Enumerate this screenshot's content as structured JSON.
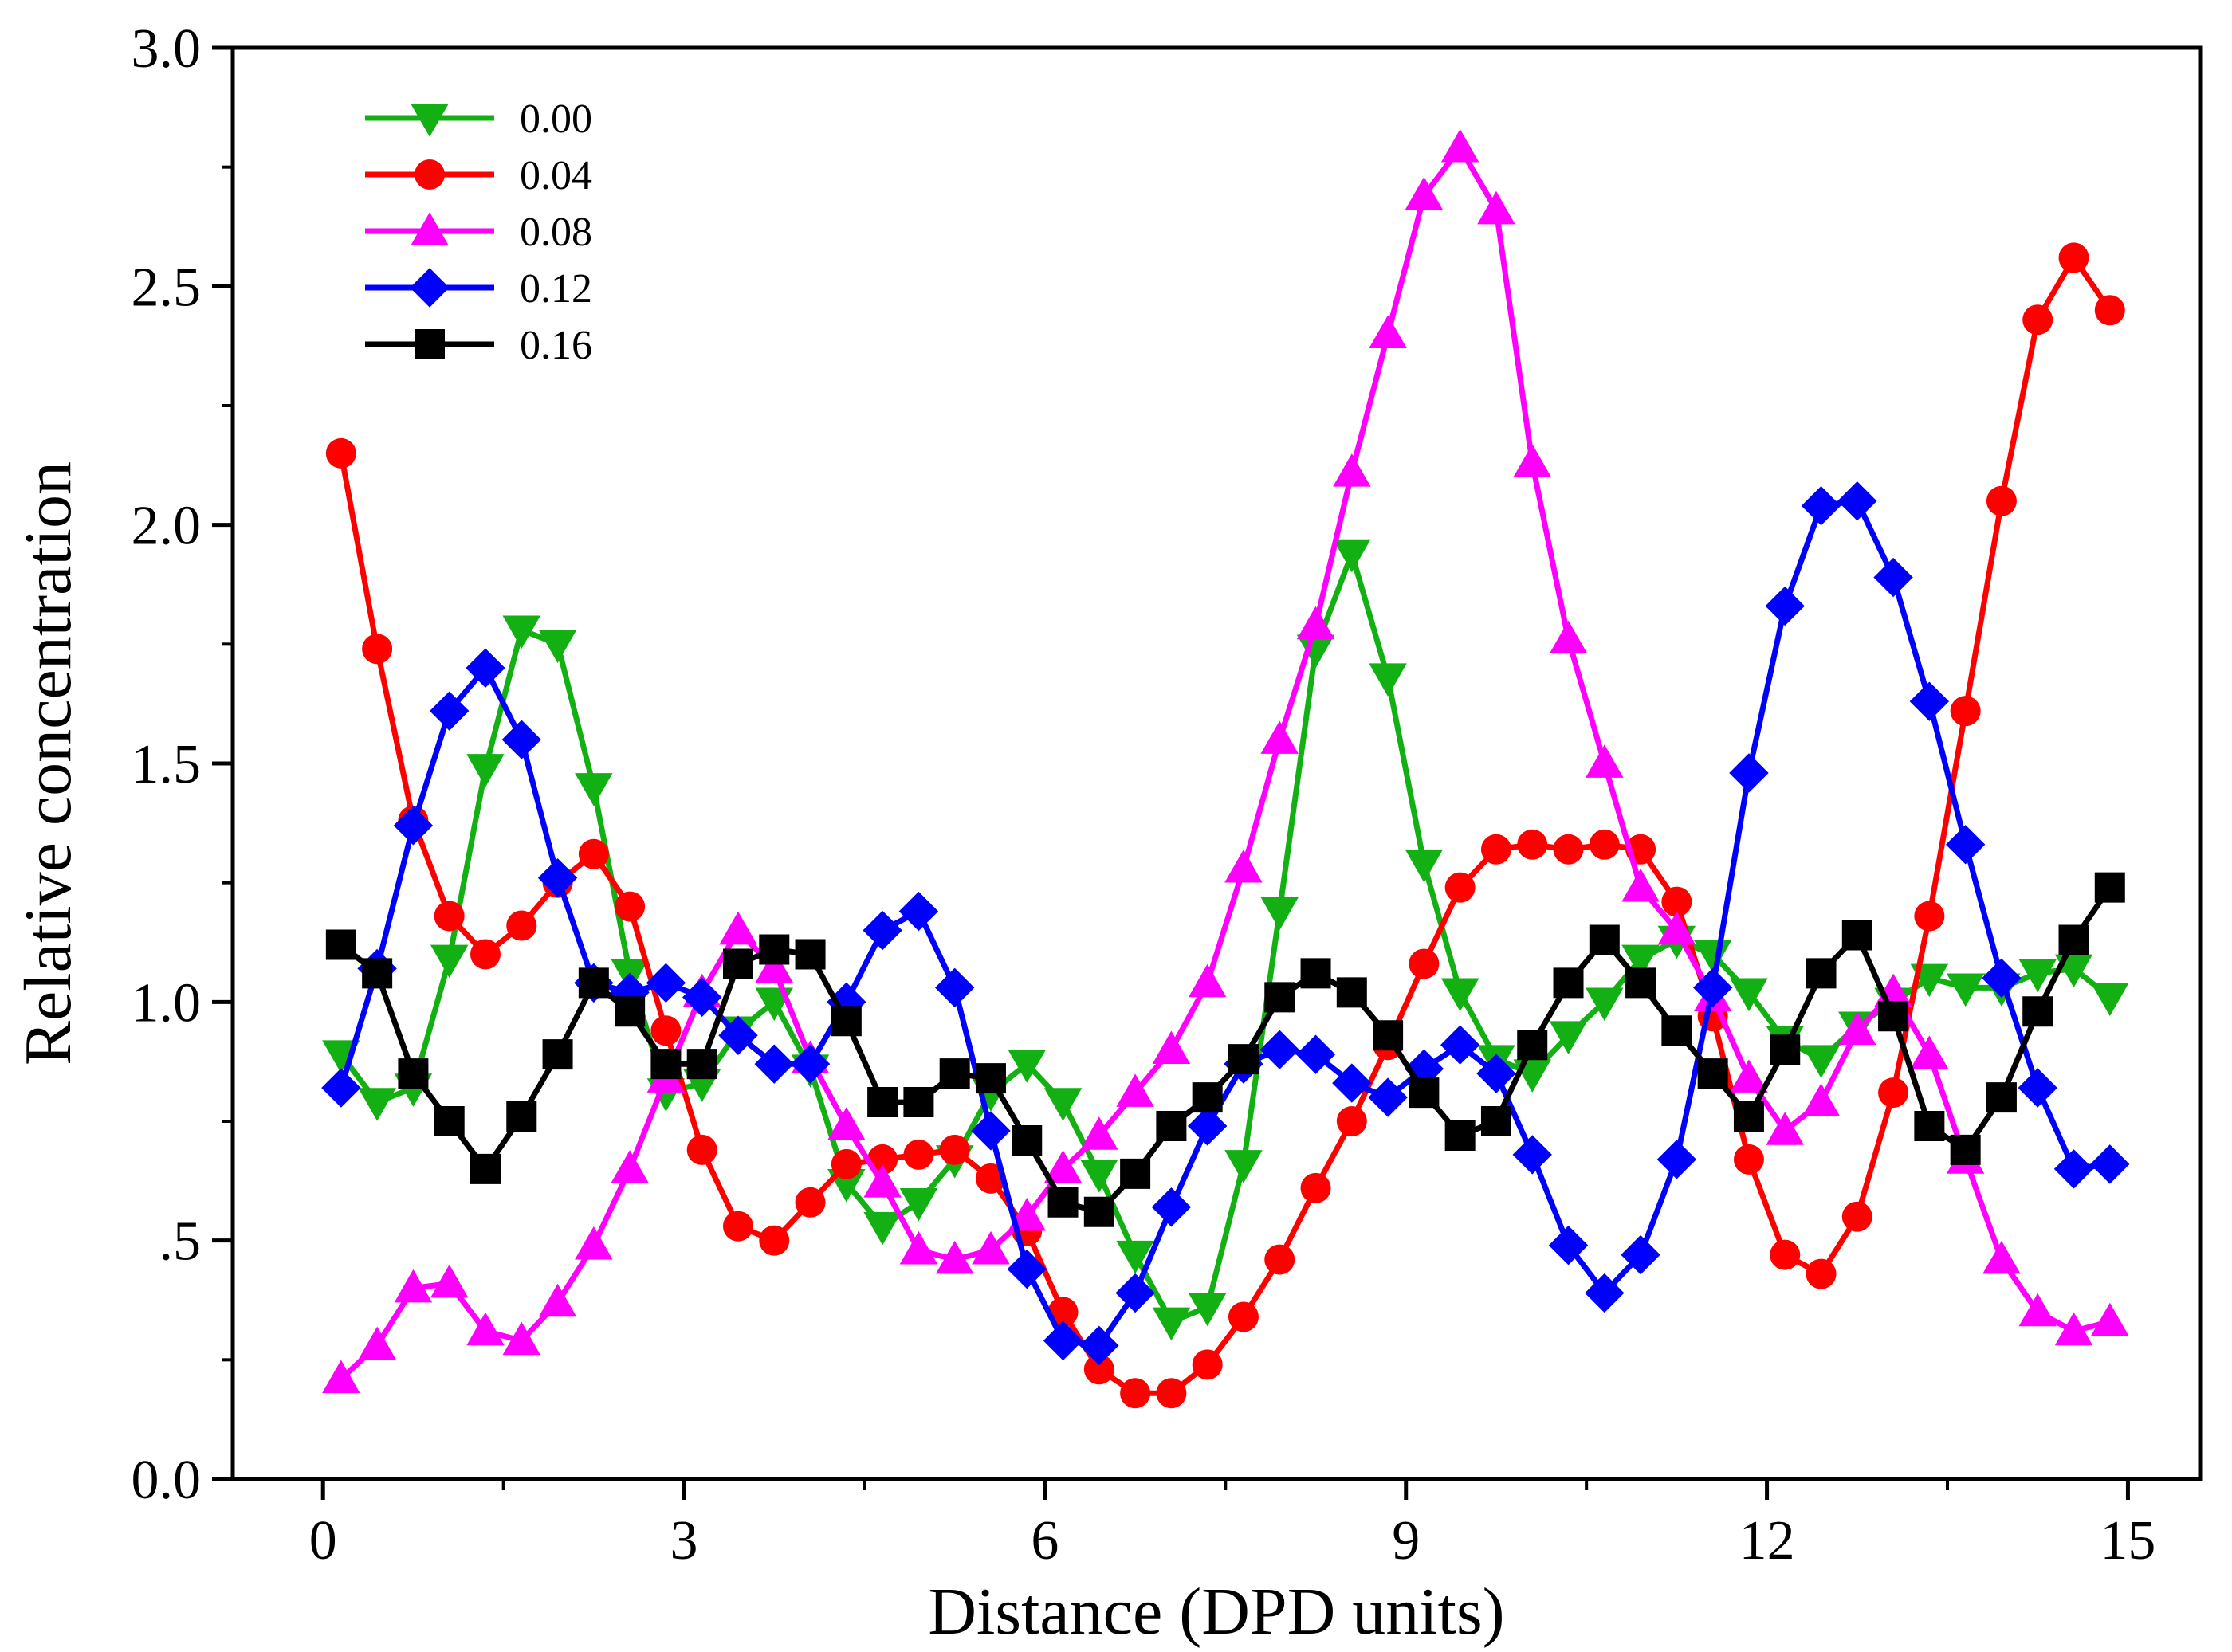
{
  "chart_data": {
    "type": "line",
    "xlabel": "Distance (DPD units)",
    "ylabel": "Relative concentration",
    "xlim": [
      -0.75,
      15.6
    ],
    "ylim": [
      0,
      3
    ],
    "xticks": [
      0,
      3,
      6,
      9,
      12,
      15
    ],
    "xtick_labels": [
      "0",
      "3",
      "6",
      "9",
      "12",
      "15"
    ],
    "yticks": [
      0,
      0.5,
      1,
      1.5,
      2,
      2.5,
      3
    ],
    "ytick_labels": [
      "0.0",
      ".5",
      "1.0",
      "1.5",
      "2.0",
      "2.5",
      "3.0"
    ],
    "x": [
      0.15,
      0.45,
      0.75,
      1.05,
      1.35,
      1.65,
      1.95,
      2.25,
      2.55,
      2.85,
      3.15,
      3.45,
      3.75,
      4.05,
      4.35,
      4.65,
      4.95,
      5.25,
      5.55,
      5.85,
      6.15,
      6.45,
      6.75,
      7.05,
      7.35,
      7.65,
      7.95,
      8.25,
      8.55,
      8.85,
      9.15,
      9.45,
      9.75,
      10.05,
      10.35,
      10.65,
      10.95,
      11.25,
      11.55,
      11.85,
      12.15,
      12.45,
      12.75,
      13.05,
      13.35,
      13.65,
      13.95,
      14.25,
      14.55,
      14.85
    ],
    "legend_position": "top-left",
    "series": [
      {
        "name": "0.00",
        "color": "#12B012",
        "marker": "triangle-down",
        "values": [
          0.89,
          0.79,
          0.82,
          1.09,
          1.49,
          1.78,
          1.75,
          1.45,
          1.06,
          0.81,
          0.83,
          0.94,
          1.0,
          0.86,
          0.62,
          0.53,
          0.58,
          0.67,
          0.81,
          0.87,
          0.79,
          0.64,
          0.47,
          0.33,
          0.36,
          0.66,
          1.19,
          1.74,
          1.94,
          1.68,
          1.29,
          1.02,
          0.88,
          0.85,
          0.93,
          1.0,
          1.09,
          1.13,
          1.1,
          1.02,
          0.92,
          0.88,
          0.95,
          1.0,
          1.05,
          1.03,
          1.03,
          1.06,
          1.07,
          1.01
        ]
      },
      {
        "name": "0.04",
        "color": "#FF0000",
        "marker": "circle",
        "values": [
          2.15,
          1.74,
          1.38,
          1.18,
          1.1,
          1.16,
          1.25,
          1.31,
          1.2,
          0.94,
          0.69,
          0.53,
          0.5,
          0.58,
          0.66,
          0.67,
          0.68,
          0.69,
          0.63,
          0.52,
          0.35,
          0.23,
          0.18,
          0.18,
          0.24,
          0.34,
          0.46,
          0.61,
          0.75,
          0.91,
          1.08,
          1.24,
          1.32,
          1.33,
          1.32,
          1.33,
          1.32,
          1.21,
          0.97,
          0.67,
          0.47,
          0.43,
          0.55,
          0.81,
          1.18,
          1.61,
          2.05,
          2.43,
          2.56,
          2.45
        ]
      },
      {
        "name": "0.08",
        "color": "#FF00FF",
        "marker": "triangle-up",
        "values": [
          0.21,
          0.28,
          0.4,
          0.41,
          0.31,
          0.29,
          0.37,
          0.49,
          0.65,
          0.84,
          1.02,
          1.15,
          1.07,
          0.88,
          0.74,
          0.62,
          0.48,
          0.46,
          0.48,
          0.55,
          0.65,
          0.72,
          0.81,
          0.9,
          1.04,
          1.28,
          1.55,
          1.79,
          2.11,
          2.4,
          2.69,
          2.79,
          2.66,
          2.13,
          1.76,
          1.5,
          1.24,
          1.15,
          1.01,
          0.84,
          0.73,
          0.79,
          0.94,
          1.02,
          0.89,
          0.67,
          0.46,
          0.35,
          0.31,
          0.33
        ]
      },
      {
        "name": "0.12",
        "color": "#0000FF",
        "marker": "diamond",
        "values": [
          0.82,
          1.07,
          1.37,
          1.61,
          1.7,
          1.55,
          1.26,
          1.04,
          1.02,
          1.04,
          1.01,
          0.93,
          0.87,
          0.87,
          1.0,
          1.15,
          1.19,
          1.03,
          0.73,
          0.44,
          0.29,
          0.28,
          0.39,
          0.57,
          0.74,
          0.87,
          0.9,
          0.89,
          0.83,
          0.8,
          0.86,
          0.91,
          0.85,
          0.68,
          0.49,
          0.39,
          0.47,
          0.67,
          1.03,
          1.48,
          1.83,
          2.04,
          2.05,
          1.89,
          1.63,
          1.33,
          1.05,
          0.82,
          0.65,
          0.66
        ]
      },
      {
        "name": "0.16",
        "color": "#000000",
        "marker": "square",
        "values": [
          1.12,
          1.06,
          0.85,
          0.75,
          0.65,
          0.76,
          0.89,
          1.04,
          0.98,
          0.87,
          0.87,
          1.08,
          1.11,
          1.1,
          0.96,
          0.79,
          0.79,
          0.85,
          0.84,
          0.71,
          0.58,
          0.56,
          0.64,
          0.74,
          0.8,
          0.88,
          1.01,
          1.06,
          1.02,
          0.93,
          0.81,
          0.72,
          0.75,
          0.91,
          1.04,
          1.13,
          1.04,
          0.94,
          0.85,
          0.76,
          0.9,
          1.06,
          1.14,
          0.97,
          0.74,
          0.69,
          0.8,
          0.98,
          1.13,
          1.24
        ]
      }
    ]
  }
}
